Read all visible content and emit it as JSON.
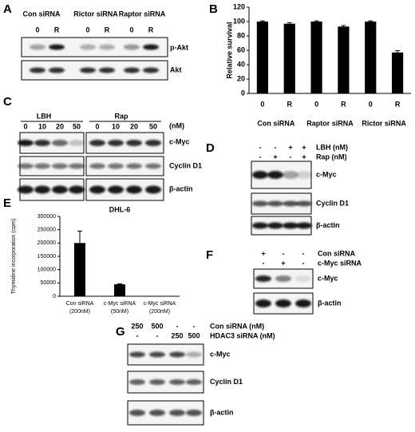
{
  "chart_data": [
    {
      "type": "bar",
      "panel_letter": "B",
      "y_label": "Relative survival",
      "categories": [
        "0",
        "R",
        "0",
        "R",
        "0",
        "R"
      ],
      "groups": [
        "Con siRNA",
        "Raptor siRNA",
        "Rictor siRNA"
      ],
      "values": [
        100,
        97,
        100,
        93,
        100,
        57
      ],
      "errors": [
        1,
        1.5,
        1,
        1.5,
        1,
        2.5
      ],
      "color": "#000000",
      "ylim": [
        0,
        120
      ],
      "yticks": [
        0,
        20,
        40,
        60,
        80,
        100,
        120
      ]
    },
    {
      "type": "bar",
      "panel_letter": "E",
      "title": "DHL-6",
      "y_label": "Thymidine incorporation (cpm)",
      "categories": [
        "Con siRNA",
        "c-Myc siRNA",
        "c-Myc siRNA"
      ],
      "category_notes": [
        "(200nM)",
        "(50nM)",
        "(200nM)"
      ],
      "values": [
        200000,
        45000,
        0
      ],
      "errors": [
        45000,
        2000,
        0
      ],
      "color": "#000000",
      "ylim": [
        0,
        300000
      ],
      "yticks": [
        0,
        50000,
        100000,
        150000,
        200000,
        250000,
        300000
      ]
    }
  ],
  "panels": [
    {
      "letter": "A",
      "header_rows": [
        [
          "Con siRNA",
          "Rictor siRNA",
          "Raptor siRNA"
        ],
        [
          "0",
          "R",
          "0",
          "R",
          "0",
          "R"
        ]
      ],
      "blot_labels": [
        "p-Akt",
        "Akt"
      ]
    },
    {
      "letter": "C",
      "header_rows": [
        [
          "LBH",
          "Rap"
        ],
        [
          "0",
          "10",
          "20",
          "50",
          "0",
          "10",
          "20",
          "50"
        ]
      ],
      "unit": "(nM)",
      "blot_labels": [
        "c-Myc",
        "Cyclin D1",
        "β-actin"
      ]
    },
    {
      "letter": "D",
      "treatments": [
        {
          "signs": [
            "-",
            "-",
            "+",
            "+"
          ],
          "label": "LBH (nM)"
        },
        {
          "signs": [
            "-",
            "+",
            "-",
            "+"
          ],
          "label": "Rap (nM)"
        }
      ],
      "blot_labels": [
        "c-Myc",
        "Cyclin D1",
        "β-actin"
      ]
    },
    {
      "letter": "F",
      "treatments": [
        {
          "signs": [
            "+",
            "-",
            "-"
          ],
          "label": "Con siRNA"
        },
        {
          "signs": [
            "-",
            "+",
            "-"
          ],
          "label": "c-Myc siRNA"
        }
      ],
      "blot_labels": [
        "c-Myc",
        "β-actin"
      ]
    },
    {
      "letter": "G",
      "treatments": [
        {
          "signs": [
            "250",
            "500",
            "-",
            "-"
          ],
          "label": "Con siRNA (nM)"
        },
        {
          "signs": [
            "-",
            "-",
            "250",
            "500"
          ],
          "label": "HDAC3 siRNA (nM)"
        }
      ],
      "blot_labels": [
        "c-Myc",
        "Cyclin D1",
        "β-actin"
      ]
    }
  ]
}
